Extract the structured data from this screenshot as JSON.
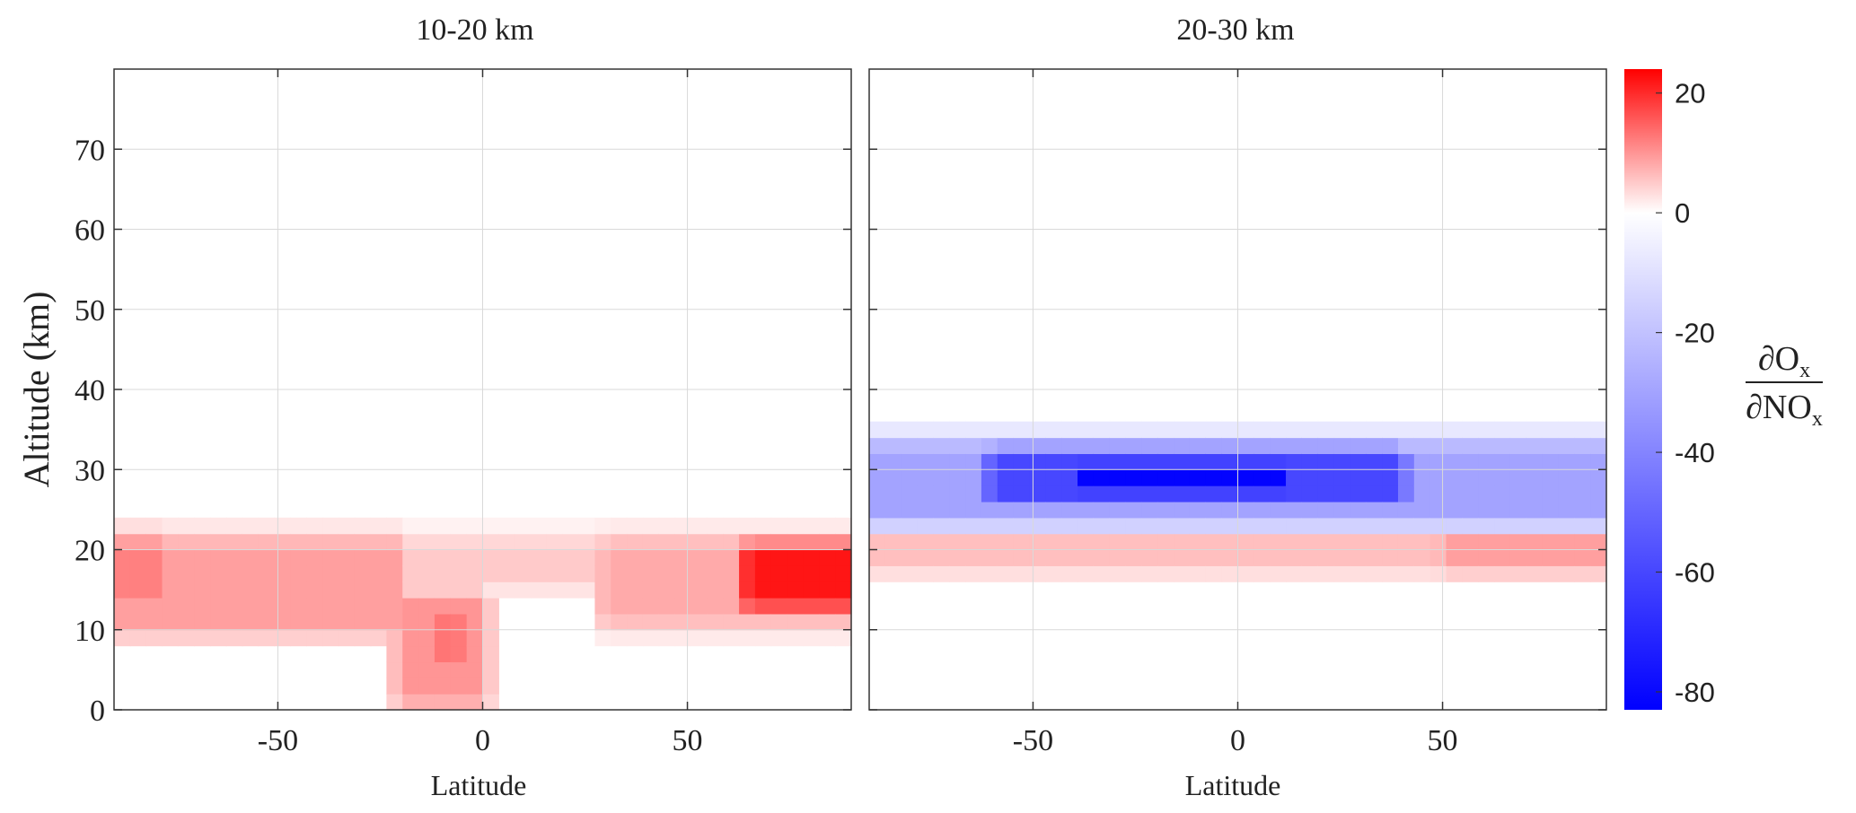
{
  "chart_data": [
    {
      "type": "heatmap",
      "title": "10-20 km",
      "xlabel": "Latitude",
      "ylabel": "Altitude (km)",
      "xlim": [
        -90,
        90
      ],
      "ylim": [
        0,
        80
      ],
      "xticks": [
        -50,
        0,
        50
      ],
      "yticks": [
        0,
        10,
        20,
        30,
        40,
        50,
        60,
        70
      ],
      "grid": true,
      "features": [
        {
          "lat": [
            -90,
            -20
          ],
          "alt": [
            11,
            20
          ],
          "value": 9
        },
        {
          "lat": [
            -88,
            -80
          ],
          "alt": [
            15,
            20
          ],
          "value": 12
        },
        {
          "lat": [
            -20,
            0
          ],
          "alt": [
            2,
            13
          ],
          "value": 10
        },
        {
          "lat": [
            -12,
            -6
          ],
          "alt": [
            6,
            12
          ],
          "value": 13
        },
        {
          "lat": [
            -20,
            30
          ],
          "alt": [
            17,
            20
          ],
          "value": 5
        },
        {
          "lat": [
            30,
            90
          ],
          "alt": [
            12,
            20
          ],
          "value": 8
        },
        {
          "lat": [
            65,
            90
          ],
          "alt": [
            14,
            19
          ],
          "value": 22
        }
      ]
    },
    {
      "type": "heatmap",
      "title": "20-30 km",
      "xlabel": "Latitude",
      "ylabel": "",
      "xlim": [
        -90,
        90
      ],
      "ylim": [
        0,
        80
      ],
      "xticks": [
        -50,
        0,
        50
      ],
      "yticks": [
        0,
        10,
        20,
        30,
        40,
        50,
        60,
        70
      ],
      "grid": true,
      "features": [
        {
          "lat": [
            -90,
            90
          ],
          "alt": [
            25,
            32
          ],
          "value": -30
        },
        {
          "lat": [
            -60,
            40
          ],
          "alt": [
            27,
            31
          ],
          "value": -60
        },
        {
          "lat": [
            -40,
            10
          ],
          "alt": [
            28,
            30
          ],
          "value": -82
        },
        {
          "lat": [
            -90,
            90
          ],
          "alt": [
            19,
            23
          ],
          "value": 6
        },
        {
          "lat": [
            50,
            90
          ],
          "alt": [
            19,
            23
          ],
          "value": 9
        }
      ]
    }
  ],
  "colorbar": {
    "min": -83,
    "max": 24,
    "ticks": [
      20,
      0,
      -20,
      -40,
      -60,
      -80
    ],
    "colors": {
      "positive": "#ff0000",
      "zero": "#ffffff",
      "negative": "#0000ff"
    },
    "label_numerator": "∂O",
    "label_denominator": "∂NO",
    "label_subscript": "x"
  }
}
